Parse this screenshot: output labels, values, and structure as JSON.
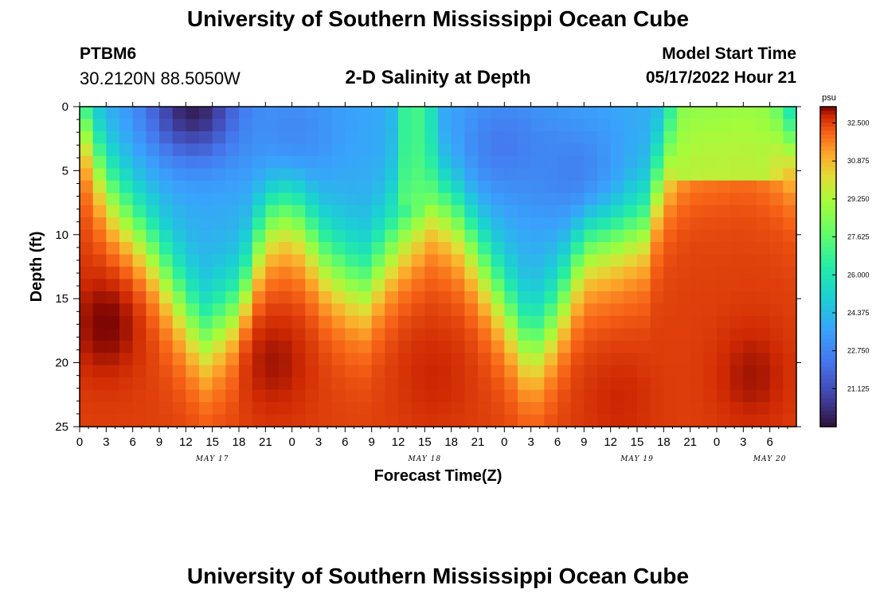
{
  "header": {
    "title": "University of Southern Mississippi Ocean Cube",
    "station_id": "PTBM6",
    "coordinates": "30.2120N  88.5050W",
    "subtitle": "2-D Salinity at Depth",
    "model_start_label": "Model Start Time",
    "model_start_value": "05/17/2022 Hour 21"
  },
  "footer": {
    "title": "University of Southern Mississippi Ocean Cube"
  },
  "chart_data": {
    "type": "heatmap",
    "title": "2-D Salinity at Depth",
    "xlabel": "Forecast Time(Z)",
    "ylabel": "Depth (ft)",
    "x_range_hours": [
      0,
      81
    ],
    "x_tick_step_hours": 3,
    "x_tick_labels": [
      "0",
      "3",
      "6",
      "9",
      "12",
      "15",
      "18",
      "21",
      "0",
      "3",
      "6",
      "9",
      "12",
      "15",
      "18",
      "21",
      "0",
      "3",
      "6",
      "9",
      "12",
      "15",
      "18",
      "21",
      "0",
      "3",
      "6"
    ],
    "date_labels": [
      {
        "hour": 15,
        "label": "MAY 17"
      },
      {
        "hour": 39,
        "label": "MAY 18"
      },
      {
        "hour": 63,
        "label": "MAY 19"
      },
      {
        "hour": 78,
        "label": "MAY 20"
      }
    ],
    "ylim": [
      0,
      25
    ],
    "y_ticks": [
      0,
      5,
      10,
      15,
      20,
      25
    ],
    "colorbar": {
      "unit": "psu",
      "min": 19.5,
      "max": 33.2,
      "tick_values": [
        32.5,
        30.875,
        29.25,
        27.625,
        26.0,
        24.375,
        22.75,
        21.125
      ],
      "tick_labels": [
        "32.500",
        "30.875",
        "29.250",
        "27.625",
        "26.000",
        "24.375",
        "22.750",
        "21.125"
      ]
    },
    "field_model": {
      "description": "Approximate salinity (psu) read off the figure: fresh surface layer whose thickness varies with time over a saline bottom layer",
      "base_salinity": 23.8,
      "bottom_salinity": 32.5,
      "interface_depth_knots": [
        {
          "hour": 0,
          "depth": 0
        },
        {
          "hour": 3,
          "depth": 6
        },
        {
          "hour": 8,
          "depth": 11
        },
        {
          "hour": 14,
          "depth": 18
        },
        {
          "hour": 18,
          "depth": 16
        },
        {
          "hour": 21,
          "depth": 9
        },
        {
          "hour": 24,
          "depth": 8
        },
        {
          "hour": 28,
          "depth": 12
        },
        {
          "hour": 32,
          "depth": 14
        },
        {
          "hour": 36,
          "depth": 10
        },
        {
          "hour": 40,
          "depth": 7
        },
        {
          "hour": 43,
          "depth": 9
        },
        {
          "hour": 47,
          "depth": 14
        },
        {
          "hour": 51,
          "depth": 19
        },
        {
          "hour": 54,
          "depth": 16
        },
        {
          "hour": 57,
          "depth": 11
        },
        {
          "hour": 61,
          "depth": 10
        },
        {
          "hour": 64,
          "depth": 9
        },
        {
          "hour": 66,
          "depth": 4
        },
        {
          "hour": 69,
          "depth": 1
        },
        {
          "hour": 75,
          "depth": 0
        },
        {
          "hour": 78,
          "depth": 1
        },
        {
          "hour": 81,
          "depth": 3
        }
      ],
      "fresh_patches": [
        {
          "hour": 13,
          "depth": 0,
          "value": 19.8
        },
        {
          "hour": 24,
          "depth": 2,
          "value": 22.8
        },
        {
          "hour": 48,
          "depth": 3,
          "value": 22.4
        },
        {
          "hour": 56,
          "depth": 5,
          "value": 22.6
        }
      ],
      "saline_cores": [
        {
          "hour": 3,
          "depth": 17,
          "value": 33.2
        },
        {
          "hour": 22,
          "depth": 20,
          "value": 33.0
        },
        {
          "hour": 40,
          "depth": 21,
          "value": 32.8
        },
        {
          "hour": 61,
          "depth": 23,
          "value": 32.8
        },
        {
          "hour": 76,
          "depth": 21,
          "value": 33.0
        }
      ],
      "mid_surface_bands": [
        {
          "hour_start": 35,
          "hour_end": 41,
          "depth_start": 0,
          "depth_end": 8,
          "value": 28.0
        },
        {
          "hour_start": 66,
          "hour_end": 80,
          "depth_start": 0,
          "depth_end": 6,
          "value": 29.0
        }
      ],
      "grid_columns": 54,
      "grid_rows": 26
    }
  }
}
